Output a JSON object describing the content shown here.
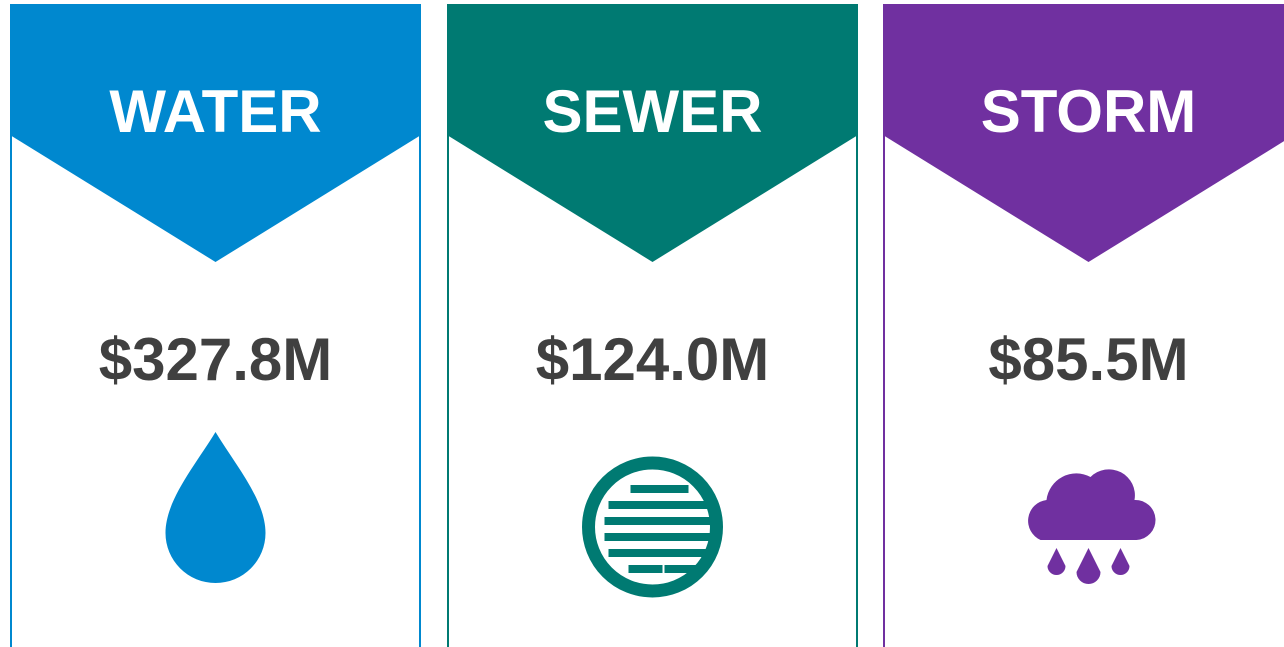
{
  "cards": [
    {
      "title": "WATER",
      "amount": "$327.8M",
      "color": "#0088cf"
    },
    {
      "title": "SEWER",
      "amount": "$124.0M",
      "color": "#007a72"
    },
    {
      "title": "STORM",
      "amount": "$85.5M",
      "color": "#7030a0"
    }
  ]
}
